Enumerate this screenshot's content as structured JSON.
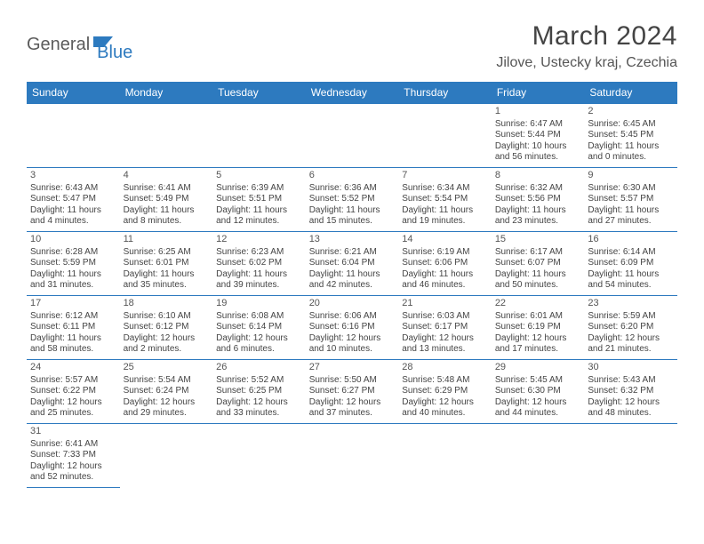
{
  "logo": {
    "text1": "General",
    "text2": "Blue"
  },
  "title": "March 2024",
  "subtitle": "Jilove, Ustecky kraj, Czechia",
  "colors": {
    "header_bg": "#2d7abf",
    "header_fg": "#ffffff",
    "border": "#2d7abf",
    "text": "#444444"
  },
  "weekdays": [
    "Sunday",
    "Monday",
    "Tuesday",
    "Wednesday",
    "Thursday",
    "Friday",
    "Saturday"
  ],
  "days": {
    "1": {
      "sr": "6:47 AM",
      "ss": "5:44 PM",
      "dh": "10",
      "dm": "56"
    },
    "2": {
      "sr": "6:45 AM",
      "ss": "5:45 PM",
      "dh": "11",
      "dm": "0"
    },
    "3": {
      "sr": "6:43 AM",
      "ss": "5:47 PM",
      "dh": "11",
      "dm": "4"
    },
    "4": {
      "sr": "6:41 AM",
      "ss": "5:49 PM",
      "dh": "11",
      "dm": "8"
    },
    "5": {
      "sr": "6:39 AM",
      "ss": "5:51 PM",
      "dh": "11",
      "dm": "12"
    },
    "6": {
      "sr": "6:36 AM",
      "ss": "5:52 PM",
      "dh": "11",
      "dm": "15"
    },
    "7": {
      "sr": "6:34 AM",
      "ss": "5:54 PM",
      "dh": "11",
      "dm": "19"
    },
    "8": {
      "sr": "6:32 AM",
      "ss": "5:56 PM",
      "dh": "11",
      "dm": "23"
    },
    "9": {
      "sr": "6:30 AM",
      "ss": "5:57 PM",
      "dh": "11",
      "dm": "27"
    },
    "10": {
      "sr": "6:28 AM",
      "ss": "5:59 PM",
      "dh": "11",
      "dm": "31"
    },
    "11": {
      "sr": "6:25 AM",
      "ss": "6:01 PM",
      "dh": "11",
      "dm": "35"
    },
    "12": {
      "sr": "6:23 AM",
      "ss": "6:02 PM",
      "dh": "11",
      "dm": "39"
    },
    "13": {
      "sr": "6:21 AM",
      "ss": "6:04 PM",
      "dh": "11",
      "dm": "42"
    },
    "14": {
      "sr": "6:19 AM",
      "ss": "6:06 PM",
      "dh": "11",
      "dm": "46"
    },
    "15": {
      "sr": "6:17 AM",
      "ss": "6:07 PM",
      "dh": "11",
      "dm": "50"
    },
    "16": {
      "sr": "6:14 AM",
      "ss": "6:09 PM",
      "dh": "11",
      "dm": "54"
    },
    "17": {
      "sr": "6:12 AM",
      "ss": "6:11 PM",
      "dh": "11",
      "dm": "58"
    },
    "18": {
      "sr": "6:10 AM",
      "ss": "6:12 PM",
      "dh": "12",
      "dm": "2"
    },
    "19": {
      "sr": "6:08 AM",
      "ss": "6:14 PM",
      "dh": "12",
      "dm": "6"
    },
    "20": {
      "sr": "6:06 AM",
      "ss": "6:16 PM",
      "dh": "12",
      "dm": "10"
    },
    "21": {
      "sr": "6:03 AM",
      "ss": "6:17 PM",
      "dh": "12",
      "dm": "13"
    },
    "22": {
      "sr": "6:01 AM",
      "ss": "6:19 PM",
      "dh": "12",
      "dm": "17"
    },
    "23": {
      "sr": "5:59 AM",
      "ss": "6:20 PM",
      "dh": "12",
      "dm": "21"
    },
    "24": {
      "sr": "5:57 AM",
      "ss": "6:22 PM",
      "dh": "12",
      "dm": "25"
    },
    "25": {
      "sr": "5:54 AM",
      "ss": "6:24 PM",
      "dh": "12",
      "dm": "29"
    },
    "26": {
      "sr": "5:52 AM",
      "ss": "6:25 PM",
      "dh": "12",
      "dm": "33"
    },
    "27": {
      "sr": "5:50 AM",
      "ss": "6:27 PM",
      "dh": "12",
      "dm": "37"
    },
    "28": {
      "sr": "5:48 AM",
      "ss": "6:29 PM",
      "dh": "12",
      "dm": "40"
    },
    "29": {
      "sr": "5:45 AM",
      "ss": "6:30 PM",
      "dh": "12",
      "dm": "44"
    },
    "30": {
      "sr": "5:43 AM",
      "ss": "6:32 PM",
      "dh": "12",
      "dm": "48"
    },
    "31": {
      "sr": "6:41 AM",
      "ss": "7:33 PM",
      "dh": "12",
      "dm": "52"
    }
  },
  "layout": [
    [
      null,
      null,
      null,
      null,
      null,
      "1",
      "2"
    ],
    [
      "3",
      "4",
      "5",
      "6",
      "7",
      "8",
      "9"
    ],
    [
      "10",
      "11",
      "12",
      "13",
      "14",
      "15",
      "16"
    ],
    [
      "17",
      "18",
      "19",
      "20",
      "21",
      "22",
      "23"
    ],
    [
      "24",
      "25",
      "26",
      "27",
      "28",
      "29",
      "30"
    ],
    [
      "31",
      null,
      null,
      null,
      null,
      null,
      null
    ]
  ],
  "labels": {
    "sunrise": "Sunrise: ",
    "sunset": "Sunset: ",
    "daylight1": "Daylight: ",
    "daylight2": " hours and ",
    "daylight3": " minutes."
  }
}
